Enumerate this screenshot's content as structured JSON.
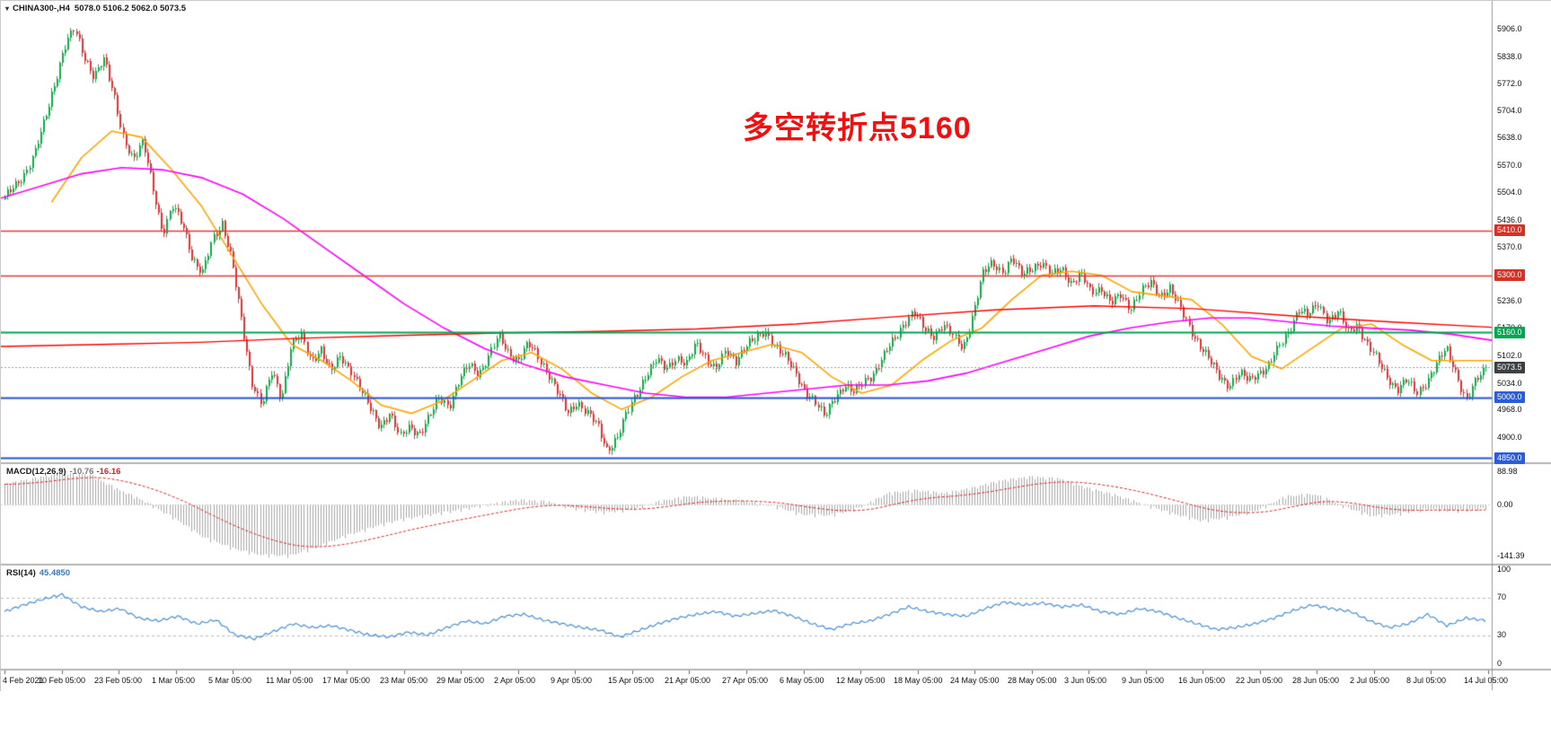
{
  "window": {
    "title_symbol": "CHINA300-,H4",
    "ohlc": "5078.0 5106.2 5062.0 5073.5"
  },
  "icons": {
    "dropdown_triangle": "▾"
  },
  "annotation": {
    "text": "多空转折点5160",
    "color": "#f10f0f"
  },
  "colors": {
    "up": "#0fab44",
    "down": "#e53030",
    "macd_hist": "#a8a8a8",
    "macd_signal": "#e02020",
    "rsi_line": "#4a8fd3",
    "current_line": "#9aa0a6",
    "current_badge": "#3c4043"
  },
  "chart_data": {
    "type": "candlestick",
    "symbol": "CHINA300-",
    "timeframe": "H4",
    "current_bar": {
      "open": 5078.0,
      "high": 5106.2,
      "low": 5062.0,
      "close": 5073.5
    },
    "current_price": 5073.5,
    "price_axis": {
      "labels": [
        5906.0,
        5838.0,
        5772.0,
        5704.0,
        5638.0,
        5570.0,
        5504.0,
        5436.0,
        5370.0,
        5302.0,
        5236.0,
        5170.0,
        5102.0,
        5034.0,
        4968.0,
        4900.0,
        4854.0
      ],
      "range": [
        4840,
        5971
      ]
    },
    "hlines": [
      {
        "price": 5410.0,
        "color": "#e53935",
        "width": 1.5,
        "badge_bg": "#d93025"
      },
      {
        "price": 5300.0,
        "color": "#e53935",
        "width": 1.5,
        "badge_bg": "#d93025"
      },
      {
        "price": 5160.0,
        "color": "#00a651",
        "width": 2,
        "badge_bg": "#00a651"
      },
      {
        "price": 5000.0,
        "color": "#2253d4",
        "width": 2,
        "badge_bg": "#2b5cd9"
      },
      {
        "price": 4850.0,
        "color": "#2253d4",
        "width": 2,
        "badge_bg": "#2b5cd9"
      }
    ],
    "close_waypoints": [
      5490,
      5520,
      5550,
      5600,
      5680,
      5770,
      5860,
      5905,
      5840,
      5790,
      5830,
      5750,
      5640,
      5580,
      5630,
      5520,
      5400,
      5470,
      5430,
      5340,
      5300,
      5390,
      5430,
      5330,
      5180,
      5040,
      4980,
      5060,
      5000,
      5130,
      5150,
      5090,
      5120,
      5060,
      5100,
      5070,
      5020,
      4970,
      4930,
      4960,
      4900,
      4930,
      4910,
      4950,
      5000,
      4980,
      5040,
      5080,
      5060,
      5100,
      5150,
      5110,
      5090,
      5130,
      5100,
      5060,
      5010,
      4960,
      4990,
      4960,
      4930,
      4870,
      4900,
      4960,
      5010,
      5060,
      5090,
      5070,
      5100,
      5080,
      5130,
      5100,
      5070,
      5110,
      5090,
      5130,
      5140,
      5160,
      5130,
      5100,
      5060,
      5020,
      4990,
      4950,
      5000,
      5030,
      5010,
      5040,
      5060,
      5100,
      5140,
      5180,
      5210,
      5170,
      5150,
      5180,
      5150,
      5120,
      5200,
      5300,
      5330,
      5310,
      5340,
      5300,
      5320,
      5330,
      5300,
      5320,
      5280,
      5300,
      5260,
      5270,
      5230,
      5250,
      5220,
      5260,
      5280,
      5250,
      5270,
      5220,
      5170,
      5130,
      5090,
      5050,
      5030,
      5060,
      5040,
      5060,
      5080,
      5120,
      5160,
      5220,
      5200,
      5230,
      5190,
      5210,
      5160,
      5180,
      5130,
      5090,
      5050,
      5020,
      5040,
      5010,
      5040,
      5080,
      5120,
      5060,
      4990,
      5040,
      5073.5
    ],
    "ma_lines": [
      {
        "name": "ma-fast-orange",
        "color": "#ffa500",
        "width": 1.6,
        "start": 0.034,
        "prices": [
          5480,
          5590,
          5655,
          5640,
          5560,
          5470,
          5350,
          5230,
          5130,
          5090,
          5040,
          4980,
          4960,
          4990,
          5040,
          5090,
          5110,
          5070,
          5010,
          4970,
          5000,
          5050,
          5090,
          5110,
          5130,
          5110,
          5050,
          5010,
          5030,
          5090,
          5140,
          5170,
          5240,
          5300,
          5310,
          5300,
          5260,
          5250,
          5240,
          5180,
          5100,
          5070,
          5120,
          5170,
          5180,
          5130,
          5090,
          5090,
          5090
        ]
      },
      {
        "name": "ma-mid-magenta",
        "color": "#ff00ff",
        "width": 1.6,
        "start": 0,
        "prices": [
          5490,
          5520,
          5550,
          5565,
          5560,
          5540,
          5500,
          5440,
          5370,
          5300,
          5230,
          5170,
          5120,
          5080,
          5050,
          5030,
          5010,
          5000,
          5000,
          5010,
          5020,
          5030,
          5030,
          5040,
          5060,
          5090,
          5120,
          5150,
          5170,
          5185,
          5195,
          5195,
          5185,
          5175,
          5170,
          5165,
          5155,
          5140
        ]
      },
      {
        "name": "ma-slow-red",
        "color": "#ff0000",
        "width": 1.4,
        "start": 0,
        "prices": [
          5125,
          5130,
          5135,
          5145,
          5152,
          5158,
          5162,
          5168,
          5180,
          5198,
          5215,
          5225,
          5218,
          5200,
          5185,
          5172
        ]
      }
    ],
    "macd": {
      "label": "MACD(12,26,9)",
      "value1": "-10.76",
      "value2": "-16.16",
      "axis_labels": [
        88.98,
        0,
        -141.39
      ],
      "range": [
        -160,
        110
      ],
      "waypoints": [
        55,
        70,
        85,
        80,
        40,
        5,
        -40,
        -90,
        -120,
        -138,
        -140,
        -115,
        -85,
        -60,
        -40,
        -28,
        -15,
        0,
        12,
        8,
        -12,
        -22,
        -15,
        8,
        22,
        15,
        8,
        -5,
        -28,
        -30,
        -10,
        30,
        38,
        30,
        45,
        65,
        75,
        70,
        45,
        25,
        0,
        -25,
        -45,
        -35,
        -15,
        22,
        28,
        -5,
        -32,
        -25,
        -12,
        -18,
        -11
      ]
    },
    "rsi": {
      "label": "RSI(14)",
      "value1": "45.4850",
      "axis_labels": [
        100,
        70,
        30,
        0
      ],
      "levels": [
        70,
        30
      ],
      "waypoints": [
        55,
        62,
        68,
        73,
        60,
        55,
        58,
        48,
        45,
        50,
        42,
        46,
        30,
        26,
        34,
        42,
        38,
        40,
        35,
        30,
        28,
        33,
        30,
        38,
        45,
        42,
        50,
        52,
        46,
        42,
        38,
        35,
        28,
        35,
        42,
        48,
        52,
        55,
        50,
        53,
        56,
        50,
        42,
        36,
        42,
        45,
        52,
        60,
        55,
        52,
        50,
        58,
        65,
        62,
        64,
        60,
        62,
        55,
        52,
        58,
        55,
        48,
        42,
        36,
        38,
        42,
        48,
        56,
        62,
        58,
        55,
        45,
        38,
        42,
        52,
        40,
        48,
        45.5
      ]
    },
    "time_axis": [
      "4 Feb 2021",
      "10 Feb 05:00",
      "23 Feb 05:00",
      "1 Mar 05:00",
      "5 Mar 05:00",
      "11 Mar 05:00",
      "17 Mar 05:00",
      "23 Mar 05:00",
      "29 Mar 05:00",
      "2 Apr 05:00",
      "9 Apr 05:00",
      "15 Apr 05:00",
      "21 Apr 05:00",
      "27 Apr 05:00",
      "6 May 05:00",
      "12 May 05:00",
      "18 May 05:00",
      "24 May 05:00",
      "28 May 05:00",
      "3 Jun 05:00",
      "9 Jun 05:00",
      "16 Jun 05:00",
      "22 Jun 05:00",
      "28 Jun 05:00",
      "2 Jul 05:00",
      "8 Jul 05:00",
      "14 Jul 05:00"
    ]
  }
}
